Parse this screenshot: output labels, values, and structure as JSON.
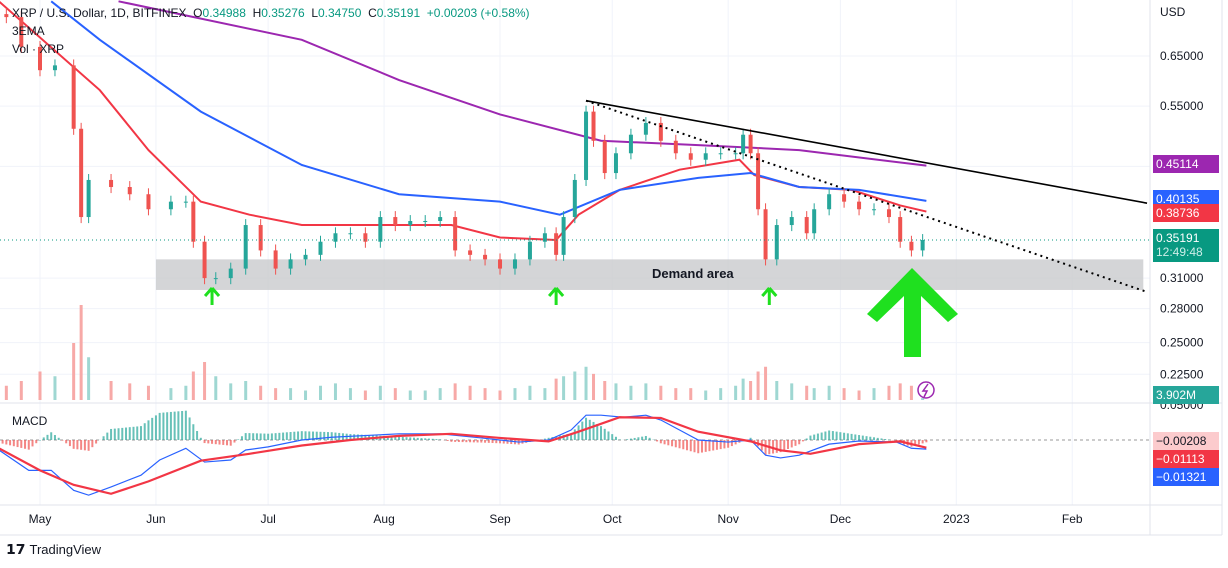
{
  "header": {
    "symbol": "XRP / U.S. Dollar, 1D, BITFINEX",
    "o_label": "O",
    "o": "0.34988",
    "h_label": "H",
    "h": "0.35276",
    "l_label": "L",
    "l": "0.34750",
    "c_label": "C",
    "c": "0.35191",
    "change": "+0.00203 (+0.58%)",
    "ema_label": "3EMA",
    "vol_label": "Vol · XRP",
    "macd_label": "MACD"
  },
  "footer": {
    "brand": "TradingView"
  },
  "colors": {
    "up": "#26a69a",
    "down": "#ef5350",
    "ema50": "#f23645",
    "ema100": "#2962ff",
    "ema200": "#9c27b0",
    "arrow": "#1fe01f"
  },
  "price_tags": {
    "ema200": "0.45114",
    "ema100": "0.40135",
    "ema50": "0.38736",
    "last": "0.35191",
    "countdown": "12:49:48",
    "volume": "3.902M",
    "macd_hist": "−0.00208",
    "macd_signal": "−0.01113",
    "macd_line": "−0.01321"
  },
  "annotation": {
    "demand": "Demand area"
  },
  "chart_data": {
    "type": "candlestick",
    "title": "XRP / U.S. Dollar, 1D, BITFINEX",
    "x_unit": "days since 2022-05-01",
    "y_scale": "log",
    "y_ticks": [
      "USD",
      "0.65000",
      "0.55000",
      "0.31000",
      "0.28000",
      "0.25000",
      "0.22500",
      "0.05000"
    ],
    "y_tick_values": [
      null,
      0.65,
      0.55,
      0.31,
      0.28,
      0.25,
      0.225,
      null
    ],
    "x_ticks": [
      {
        "label": "May",
        "day": 0
      },
      {
        "label": "Jun",
        "day": 31
      },
      {
        "label": "Jul",
        "day": 61
      },
      {
        "label": "Aug",
        "day": 92
      },
      {
        "label": "Sep",
        "day": 123
      },
      {
        "label": "Oct",
        "day": 153
      },
      {
        "label": "Nov",
        "day": 184
      },
      {
        "label": "Dec",
        "day": 214
      },
      {
        "label": "2023",
        "day": 245
      },
      {
        "label": "Feb",
        "day": 276
      }
    ],
    "closes": [
      [
        -9,
        0.74
      ],
      [
        -5,
        0.67
      ],
      [
        0,
        0.62
      ],
      [
        4,
        0.63
      ],
      [
        9,
        0.51
      ],
      [
        11,
        0.38
      ],
      [
        13,
        0.43
      ],
      [
        19,
        0.42
      ],
      [
        24,
        0.41
      ],
      [
        29,
        0.39
      ],
      [
        35,
        0.4
      ],
      [
        39,
        0.4
      ],
      [
        41,
        0.35
      ],
      [
        44,
        0.31
      ],
      [
        47,
        0.31
      ],
      [
        51,
        0.32
      ],
      [
        55,
        0.37
      ],
      [
        59,
        0.34
      ],
      [
        63,
        0.32
      ],
      [
        67,
        0.33
      ],
      [
        71,
        0.335
      ],
      [
        75,
        0.35
      ],
      [
        79,
        0.36
      ],
      [
        83,
        0.36
      ],
      [
        87,
        0.35
      ],
      [
        91,
        0.38
      ],
      [
        95,
        0.37
      ],
      [
        99,
        0.375
      ],
      [
        103,
        0.375
      ],
      [
        107,
        0.38
      ],
      [
        111,
        0.34
      ],
      [
        115,
        0.335
      ],
      [
        119,
        0.33
      ],
      [
        123,
        0.32
      ],
      [
        127,
        0.33
      ],
      [
        131,
        0.35
      ],
      [
        135,
        0.36
      ],
      [
        138,
        0.335
      ],
      [
        140,
        0.38
      ],
      [
        143,
        0.43
      ],
      [
        146,
        0.54
      ],
      [
        148,
        0.49
      ],
      [
        151,
        0.44
      ],
      [
        154,
        0.47
      ],
      [
        158,
        0.5
      ],
      [
        162,
        0.52
      ],
      [
        166,
        0.49
      ],
      [
        170,
        0.47
      ],
      [
        174,
        0.46
      ],
      [
        178,
        0.47
      ],
      [
        182,
        0.47
      ],
      [
        186,
        0.47
      ],
      [
        188,
        0.5
      ],
      [
        190,
        0.47
      ],
      [
        192,
        0.39
      ],
      [
        194,
        0.33
      ],
      [
        197,
        0.37
      ],
      [
        201,
        0.38
      ],
      [
        205,
        0.36
      ],
      [
        207,
        0.39
      ],
      [
        211,
        0.41
      ],
      [
        215,
        0.4
      ],
      [
        219,
        0.39
      ],
      [
        223,
        0.39
      ],
      [
        227,
        0.38
      ],
      [
        230,
        0.35
      ],
      [
        233,
        0.34
      ],
      [
        236,
        0.352
      ]
    ],
    "volume_m": [
      30,
      40,
      60,
      50,
      120,
      200,
      90,
      40,
      35,
      30,
      25,
      30,
      60,
      80,
      50,
      35,
      40,
      30,
      25,
      25,
      20,
      30,
      35,
      25,
      20,
      30,
      25,
      20,
      20,
      25,
      35,
      30,
      25,
      20,
      25,
      30,
      25,
      45,
      50,
      60,
      70,
      55,
      40,
      35,
      30,
      35,
      30,
      25,
      25,
      20,
      25,
      30,
      45,
      40,
      60,
      70,
      40,
      35,
      30,
      25,
      30,
      25,
      20,
      25,
      30,
      35,
      30,
      4
    ],
    "ema_series": [
      {
        "name": "EMA 50",
        "points": [
          [
            -11,
            0.78
          ],
          [
            16,
            0.58
          ],
          [
            29,
            0.475
          ],
          [
            43,
            0.4
          ],
          [
            56,
            0.383
          ],
          [
            70,
            0.37
          ],
          [
            83,
            0.37
          ],
          [
            110,
            0.37
          ],
          [
            123,
            0.355
          ],
          [
            138,
            0.352
          ],
          [
            144,
            0.383
          ],
          [
            155,
            0.416
          ],
          [
            171,
            0.445
          ],
          [
            187,
            0.46
          ],
          [
            191,
            0.437
          ],
          [
            203,
            0.42
          ],
          [
            217,
            0.416
          ],
          [
            230,
            0.395
          ],
          [
            237,
            0.387
          ]
        ]
      },
      {
        "name": "EMA 100",
        "points": [
          [
            3,
            0.78
          ],
          [
            16,
            0.686
          ],
          [
            43,
            0.54
          ],
          [
            70,
            0.452
          ],
          [
            96,
            0.41
          ],
          [
            123,
            0.4
          ],
          [
            139,
            0.383
          ],
          [
            155,
            0.416
          ],
          [
            176,
            0.433
          ],
          [
            190,
            0.44
          ],
          [
            203,
            0.42
          ],
          [
            219,
            0.416
          ],
          [
            237,
            0.401
          ]
        ]
      },
      {
        "name": "EMA 200",
        "points": [
          [
            21,
            0.78
          ],
          [
            70,
            0.686
          ],
          [
            96,
            0.6
          ],
          [
            123,
            0.535
          ],
          [
            150,
            0.49
          ],
          [
            176,
            0.483
          ],
          [
            203,
            0.475
          ],
          [
            237,
            0.451
          ]
        ]
      }
    ],
    "trendlines": [
      {
        "style": "solid",
        "from": [
          146,
          0.56
        ],
        "to": [
          296,
          0.398
        ]
      },
      {
        "style": "dotted",
        "from": [
          146,
          0.56
        ],
        "to": [
          296,
          0.296
        ]
      }
    ],
    "demand_zone": {
      "from_day": 31,
      "to_day": 295,
      "low": 0.298,
      "high": 0.33
    },
    "support_arrows_days": [
      46,
      138,
      195
    ],
    "macd_line": [
      [
        -11,
        -0.0145
      ],
      [
        -3,
        -0.044
      ],
      [
        3,
        -0.044
      ],
      [
        9,
        -0.073
      ],
      [
        13,
        -0.08
      ],
      [
        19,
        -0.068
      ],
      [
        27,
        -0.051
      ],
      [
        32,
        -0.029
      ],
      [
        39,
        -0.012
      ],
      [
        44,
        -0.032
      ],
      [
        51,
        -0.029
      ],
      [
        55,
        -0.0145
      ],
      [
        61,
        -0.01
      ],
      [
        70,
        0
      ],
      [
        78,
        0.004
      ],
      [
        96,
        0.009
      ],
      [
        107,
        0.009
      ],
      [
        118,
        0.003
      ],
      [
        128,
        -0.003
      ],
      [
        136,
        0
      ],
      [
        142,
        0.0145
      ],
      [
        146,
        0.036
      ],
      [
        150,
        0.036
      ],
      [
        156,
        0.033
      ],
      [
        162,
        0.036
      ],
      [
        166,
        0.029
      ],
      [
        171,
        0.0145
      ],
      [
        176,
        0
      ],
      [
        184,
        -0.003
      ],
      [
        190,
        0
      ],
      [
        194,
        -0.022
      ],
      [
        198,
        -0.026
      ],
      [
        203,
        -0.022
      ],
      [
        211,
        -0.006
      ],
      [
        219,
        -0.0015
      ],
      [
        229,
        -0.003
      ],
      [
        233,
        -0.012
      ],
      [
        237,
        -0.0132
      ]
    ],
    "macd_signal": [
      [
        -11,
        -0.012
      ],
      [
        0,
        -0.044
      ],
      [
        9,
        -0.065
      ],
      [
        19,
        -0.078
      ],
      [
        29,
        -0.06
      ],
      [
        43,
        -0.03
      ],
      [
        56,
        -0.02
      ],
      [
        70,
        -0.008
      ],
      [
        83,
        0
      ],
      [
        96,
        0.006
      ],
      [
        110,
        0.009
      ],
      [
        123,
        0.003
      ],
      [
        136,
        -0.002
      ],
      [
        144,
        0.012
      ],
      [
        155,
        0.033
      ],
      [
        166,
        0.032
      ],
      [
        176,
        0.012
      ],
      [
        190,
        -0.002
      ],
      [
        198,
        -0.015
      ],
      [
        206,
        -0.02
      ],
      [
        219,
        -0.006
      ],
      [
        230,
        -0.002
      ],
      [
        237,
        -0.0111
      ]
    ]
  }
}
